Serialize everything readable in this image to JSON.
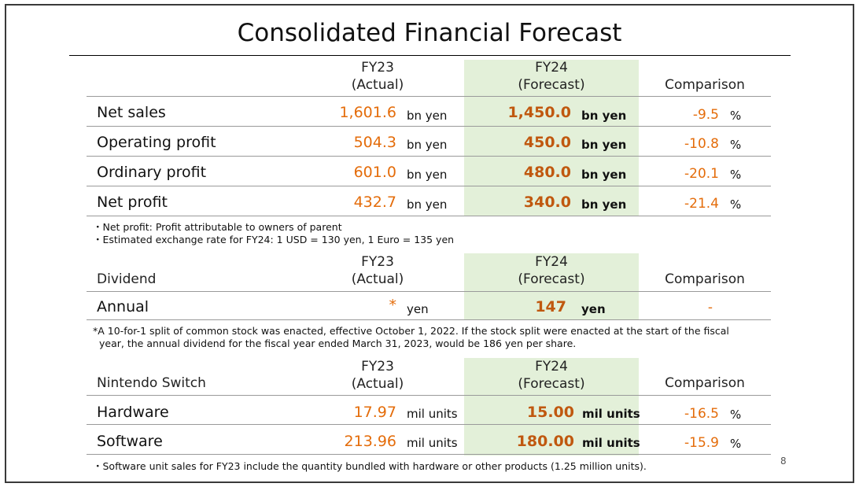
{
  "title": "Consolidated Financial Forecast",
  "page_number": "8",
  "financials": {
    "fy23_line1": "FY23",
    "fy23_line2": "(Actual)",
    "fy24_line1": "FY24",
    "fy24_line2": "(Forecast)",
    "comparison": "Comparison",
    "rows": [
      {
        "label": "Net sales",
        "fy23": "1,601.6",
        "fy23_unit": "bn yen",
        "fy24": "1,450.0",
        "fy24_unit": "bn yen",
        "comparison": "-9.5",
        "pct": "%"
      },
      {
        "label": "Operating profit",
        "fy23": "504.3",
        "fy23_unit": "bn yen",
        "fy24": "450.0",
        "fy24_unit": "bn yen",
        "comparison": "-10.8",
        "pct": "%"
      },
      {
        "label": "Ordinary profit",
        "fy23": "601.0",
        "fy23_unit": "bn yen",
        "fy24": "480.0",
        "fy24_unit": "bn yen",
        "comparison": "-20.1",
        "pct": "%"
      },
      {
        "label": "Net profit",
        "fy23": "432.7",
        "fy23_unit": "bn yen",
        "fy24": "340.0",
        "fy24_unit": "bn yen",
        "comparison": "-21.4",
        "pct": "%"
      }
    ],
    "notes": [
      "・Net profit: Profit attributable to owners of parent",
      "・Estimated exchange rate for FY24: 1 USD = 130 yen, 1 Euro = 135 yen"
    ]
  },
  "dividend": {
    "section": "Dividend",
    "fy23_line1": "FY23",
    "fy23_line2": "(Actual)",
    "fy24_line1": "FY24",
    "fy24_line2": "(Forecast)",
    "comparison": "Comparison",
    "row": {
      "label": "Annual",
      "fy23": "*",
      "fy23_unit": "yen",
      "fy24": "147",
      "fy24_unit": "yen",
      "comparison": "-"
    },
    "note_line1": "*A 10-for-1 split of common stock was enacted, effective October 1, 2022. If the stock split were enacted at the start of the fiscal",
    "note_line2": "year, the annual dividend for the fiscal year ended March 31, 2023, would be 186 yen per share."
  },
  "switch": {
    "section": "Nintendo Switch",
    "fy23_line1": "FY23",
    "fy23_line2": "(Actual)",
    "fy24_line1": "FY24",
    "fy24_line2": "(Forecast)",
    "comparison": "Comparison",
    "rows": [
      {
        "label": "Hardware",
        "fy23": "17.97",
        "fy23_unit": "mil units",
        "fy24": "15.00",
        "fy24_unit": "mil units",
        "comparison": "-16.5",
        "pct": "%"
      },
      {
        "label": "Software",
        "fy23": "213.96",
        "fy23_unit": "mil units",
        "fy24": "180.00",
        "fy24_unit": "mil units",
        "comparison": "-15.9",
        "pct": "%"
      }
    ],
    "note": "・Software unit sales for FY23 include the quantity bundled with hardware or other products (1.25 million units)."
  }
}
